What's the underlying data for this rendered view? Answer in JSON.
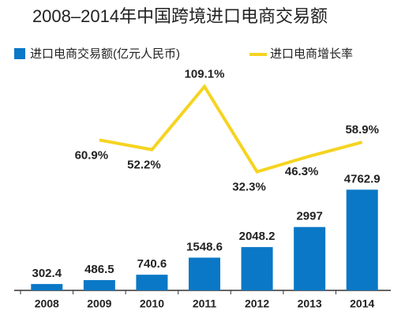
{
  "chart_data": {
    "type": "bar_line",
    "title": "2008–2014年中国跨境进口电商交易额",
    "categories": [
      "2008",
      "2009",
      "2010",
      "2011",
      "2012",
      "2013",
      "2014"
    ],
    "series": [
      {
        "name": "进口电商交易额(亿元人民币)",
        "type": "bar",
        "color": "#0a78c6",
        "values": [
          302.4,
          486.5,
          740.6,
          1548.6,
          2048.2,
          2997,
          4762.9
        ]
      },
      {
        "name": "进口电商增长率",
        "type": "line",
        "axis": "y2",
        "color": "#f5d421",
        "values": [
          null,
          60.9,
          52.2,
          109.1,
          32.3,
          46.3,
          58.9
        ],
        "value_labels": [
          null,
          "60.9%",
          "52.2%",
          "109.1%",
          "32.3%",
          "46.3%",
          "58.9%"
        ]
      }
    ],
    "ylim": [
      0,
      10000
    ],
    "y2lim": [
      0,
      116
    ],
    "grid": false
  }
}
